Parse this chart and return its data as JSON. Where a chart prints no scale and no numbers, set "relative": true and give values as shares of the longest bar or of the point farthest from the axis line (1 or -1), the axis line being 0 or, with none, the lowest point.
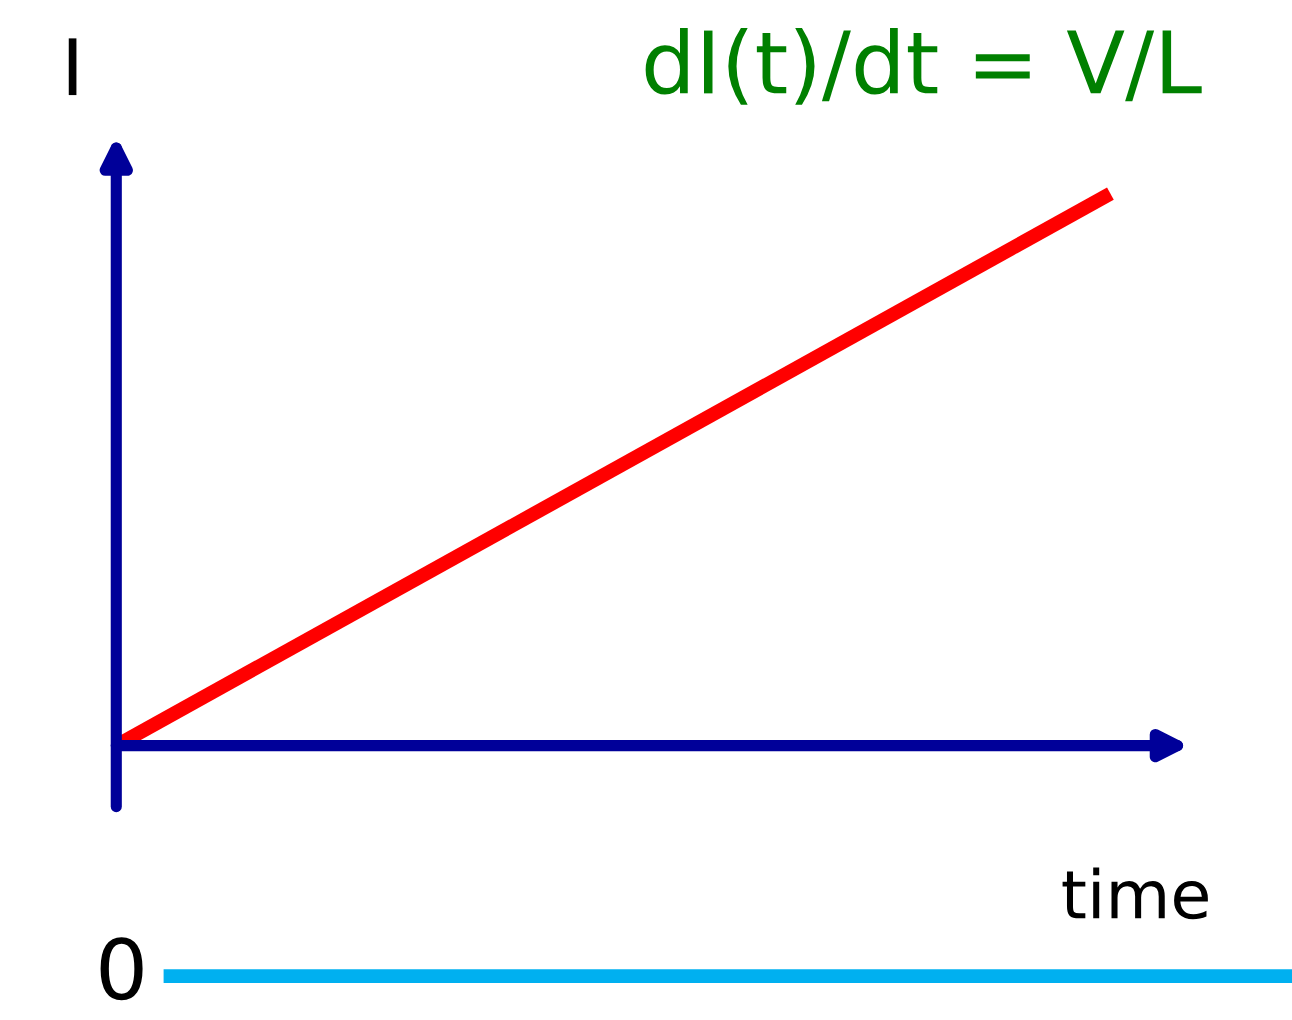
{
  "chart_data": [
    {
      "type": "line",
      "relative": true,
      "xlabel": "time",
      "ylabel": "I",
      "annotations": [
        "dI(t)/dt = V/L"
      ],
      "categories": [
        null,
        null
      ],
      "series": [
        {
          "color": "#ff0000",
          "values": [
            0,
            1
          ]
        }
      ]
    },
    {
      "type": "other",
      "annotations": [
        "0"
      ]
    }
  ]
}
